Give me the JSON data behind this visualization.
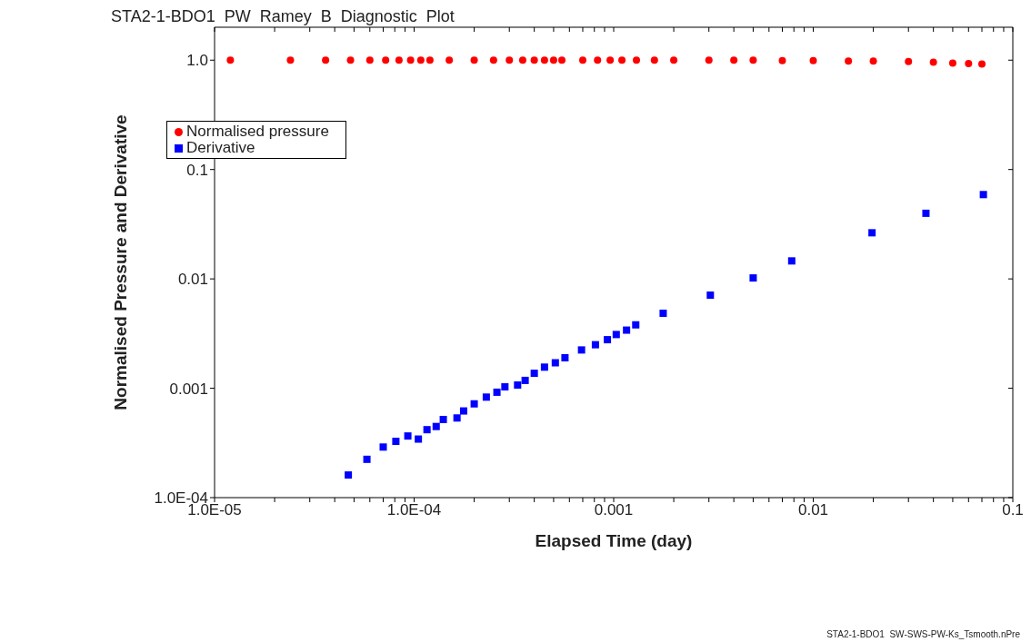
{
  "chart_data": {
    "type": "scatter",
    "title": "STA2-1-BDO1  PW  Ramey  B  Diagnostic  Plot",
    "xlabel": "Elapsed  Time  (day)",
    "ylabel": "Normalised  Pressure  and  Derivative",
    "annotations": [
      "STA2-1-BDO1  SW-SWS-PW-Ks_Tsmooth.nPre"
    ],
    "log": "xy",
    "grid": false,
    "legend": "top left",
    "xlim": [
      1e-05,
      0.1
    ],
    "ylim": [
      0.0001,
      2
    ],
    "xticks": [
      {
        "value": 1e-05,
        "label": "1.0E-05"
      },
      {
        "value": 2e-05,
        "label": null
      },
      {
        "value": 3e-05,
        "label": null
      },
      {
        "value": 4e-05,
        "label": null
      },
      {
        "value": 5e-05,
        "label": null
      },
      {
        "value": 6e-05,
        "label": null
      },
      {
        "value": 7e-05,
        "label": null
      },
      {
        "value": 8e-05,
        "label": null
      },
      {
        "value": 9e-05,
        "label": null
      },
      {
        "value": 0.0001,
        "label": "1.0E-04"
      },
      {
        "value": 0.0002,
        "label": null
      },
      {
        "value": 0.0003,
        "label": null
      },
      {
        "value": 0.0004,
        "label": null
      },
      {
        "value": 0.0005,
        "label": null
      },
      {
        "value": 0.0006,
        "label": null
      },
      {
        "value": 0.0007,
        "label": null
      },
      {
        "value": 0.0008,
        "label": null
      },
      {
        "value": 0.0009,
        "label": null
      },
      {
        "value": 0.001,
        "label": "0.001"
      },
      {
        "value": 0.002,
        "label": null
      },
      {
        "value": 0.003,
        "label": null
      },
      {
        "value": 0.004,
        "label": null
      },
      {
        "value": 0.005,
        "label": null
      },
      {
        "value": 0.006,
        "label": null
      },
      {
        "value": 0.007,
        "label": null
      },
      {
        "value": 0.008,
        "label": null
      },
      {
        "value": 0.009,
        "label": null
      },
      {
        "value": 0.01,
        "label": "0.01"
      },
      {
        "value": 0.02,
        "label": null
      },
      {
        "value": 0.03,
        "label": null
      },
      {
        "value": 0.04,
        "label": null
      },
      {
        "value": 0.05,
        "label": null
      },
      {
        "value": 0.06,
        "label": null
      },
      {
        "value": 0.07,
        "label": null
      },
      {
        "value": 0.08,
        "label": null
      },
      {
        "value": 0.09,
        "label": null
      },
      {
        "value": 0.1,
        "label": "0.1"
      }
    ],
    "yticks": [
      {
        "value": 0.0001,
        "label": "1.0E-04"
      },
      {
        "value": 0.001,
        "label": "0.001"
      },
      {
        "value": 0.01,
        "label": "0.01"
      },
      {
        "value": 0.1,
        "label": "0.1"
      },
      {
        "value": 1,
        "label": "1.0"
      }
    ],
    "series": [
      {
        "name": "Normalised pressure",
        "color": "#ff0000",
        "marker": "circle",
        "x": [
          1.2e-05,
          2.4e-05,
          3.6e-05,
          4.8e-05,
          6e-05,
          7.2e-05,
          8.4e-05,
          9.6e-05,
          0.000108,
          0.00012,
          0.00015,
          0.0002,
          0.00025,
          0.0003,
          0.00035,
          0.0004,
          0.00045,
          0.0005,
          0.00055,
          0.0007,
          0.00083,
          0.00096,
          0.0011,
          0.0013,
          0.0016,
          0.002,
          0.003,
          0.004,
          0.005,
          0.007,
          0.01,
          0.015,
          0.02,
          0.03,
          0.04,
          0.05,
          0.06,
          0.07
        ],
        "values": [
          1,
          1,
          1,
          1,
          1,
          1,
          1,
          1,
          1,
          1,
          1,
          1,
          1,
          1,
          1,
          1,
          1,
          1,
          1,
          1,
          1,
          1,
          1,
          1,
          1,
          1,
          1,
          1,
          1,
          0.99,
          0.99,
          0.98,
          0.98,
          0.97,
          0.96,
          0.94,
          0.93,
          0.92
        ]
      },
      {
        "name": "Derivative",
        "color": "#0000ff",
        "marker": "square",
        "x": [
          4.68e-05,
          5.8e-05,
          7e-05,
          8.1e-05,
          9.3e-05,
          0.000105,
          0.000116,
          0.000129,
          0.00014,
          0.000164,
          0.000177,
          0.0002,
          0.00023,
          0.00026,
          0.000285,
          0.00033,
          0.00036,
          0.0004,
          0.00045,
          0.00051,
          0.00057,
          0.00069,
          0.00081,
          0.00093,
          0.00103,
          0.00116,
          0.00129,
          0.00177,
          0.00305,
          0.005,
          0.0078,
          0.0197,
          0.0367,
          0.0712
        ],
        "values": [
          0.000161,
          0.000224,
          0.00029,
          0.000327,
          0.000366,
          0.000343,
          0.000418,
          0.000447,
          0.000518,
          0.000535,
          0.00062,
          0.00072,
          0.00083,
          0.00092,
          0.00103,
          0.00107,
          0.00118,
          0.00137,
          0.00156,
          0.00171,
          0.0019,
          0.00224,
          0.0025,
          0.00278,
          0.0031,
          0.0034,
          0.0038,
          0.00485,
          0.0071,
          0.0102,
          0.0146,
          0.0264,
          0.0398,
          0.059
        ]
      }
    ]
  }
}
